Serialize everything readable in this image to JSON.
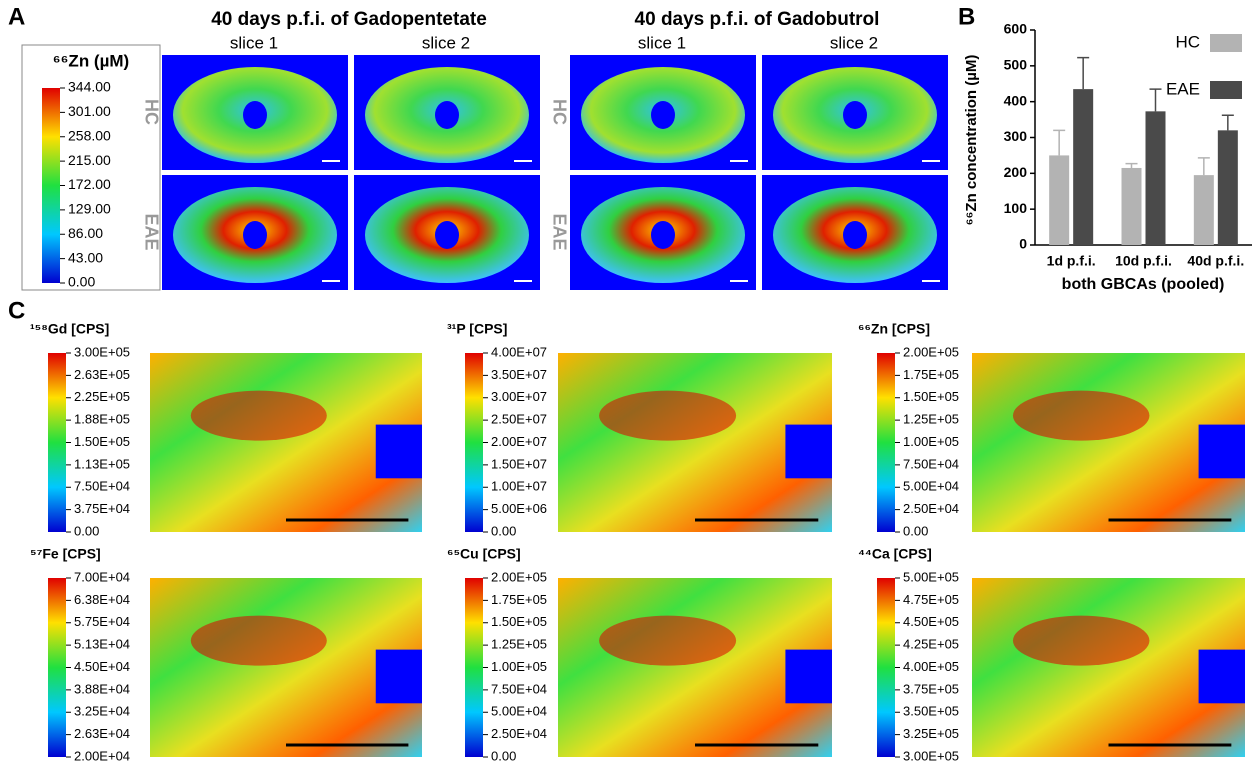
{
  "panel_labels": [
    "A",
    "B",
    "C"
  ],
  "panel_a": {
    "groups": [
      {
        "title": "40 days p.f.i. of Gadopentetate",
        "columns": [
          "slice 1",
          "slice 2"
        ],
        "rows": [
          "HC",
          "EAE"
        ]
      },
      {
        "title": "40 days p.f.i. of Gadobutrol",
        "columns": [
          "slice 1",
          "slice 2"
        ],
        "rows": [
          "HC",
          "EAE"
        ]
      }
    ],
    "colorbar": {
      "title": "⁶⁶Zn (µM)",
      "lim": [
        0,
        344
      ],
      "ticks": [
        {
          "value": 344,
          "label": "344.00"
        },
        {
          "value": 301,
          "label": "301.00"
        },
        {
          "value": 258,
          "label": "258.00"
        },
        {
          "value": 215,
          "label": "215.00"
        },
        {
          "value": 172,
          "label": "172.00"
        },
        {
          "value": 129,
          "label": "129.00"
        },
        {
          "value": 86,
          "label": "86.00"
        },
        {
          "value": 43,
          "label": "43.00"
        },
        {
          "value": 0,
          "label": "0.00"
        }
      ]
    }
  },
  "chart_data": {
    "type": "bar",
    "categories": [
      "1d p.f.i.",
      "10d p.f.i.",
      "40d p.f.i."
    ],
    "series": [
      {
        "name": "HC",
        "color": "#b3b3b3",
        "values": [
          250,
          215,
          195
        ],
        "errors": [
          70,
          12,
          48
        ]
      },
      {
        "name": "EAE",
        "color": "#4a4a4a",
        "values": [
          435,
          373,
          320
        ],
        "errors": [
          88,
          62,
          42
        ]
      }
    ],
    "xlabel": "both GBCAs (pooled)",
    "ylabel": "⁶⁶Zn concentration (µM)",
    "ylim": [
      0,
      600
    ],
    "yticks": [
      0,
      100,
      200,
      300,
      400,
      500,
      600
    ],
    "legend": "top-right"
  },
  "panel_c": {
    "colorbars": [
      {
        "title": "¹⁵⁸Gd [CPS]",
        "lim": [
          0,
          300000
        ],
        "ticks": [
          {
            "value": 300000,
            "label": "3.00E+05"
          },
          {
            "value": 262500,
            "label": "2.63E+05"
          },
          {
            "value": 225000,
            "label": "2.25E+05"
          },
          {
            "value": 187500,
            "label": "1.88E+05"
          },
          {
            "value": 150000,
            "label": "1.50E+05"
          },
          {
            "value": 112500,
            "label": "1.13E+05"
          },
          {
            "value": 75000,
            "label": "7.50E+04"
          },
          {
            "value": 37500,
            "label": "3.75E+04"
          },
          {
            "value": 0,
            "label": "0.00"
          }
        ]
      },
      {
        "title": "³¹P [CPS]",
        "lim": [
          0,
          40000000
        ],
        "ticks": [
          {
            "value": 40000000,
            "label": "4.00E+07"
          },
          {
            "value": 35000000,
            "label": "3.50E+07"
          },
          {
            "value": 30000000,
            "label": "3.00E+07"
          },
          {
            "value": 25000000,
            "label": "2.50E+07"
          },
          {
            "value": 20000000,
            "label": "2.00E+07"
          },
          {
            "value": 15000000,
            "label": "1.50E+07"
          },
          {
            "value": 10000000,
            "label": "1.00E+07"
          },
          {
            "value": 5000000,
            "label": "5.00E+06"
          },
          {
            "value": 0,
            "label": "0.00"
          }
        ]
      },
      {
        "title": "⁶⁶Zn [CPS]",
        "lim": [
          0,
          200000
        ],
        "ticks": [
          {
            "value": 200000,
            "label": "2.00E+05"
          },
          {
            "value": 175000,
            "label": "1.75E+05"
          },
          {
            "value": 150000,
            "label": "1.50E+05"
          },
          {
            "value": 125000,
            "label": "1.25E+05"
          },
          {
            "value": 100000,
            "label": "1.00E+05"
          },
          {
            "value": 75000,
            "label": "7.50E+04"
          },
          {
            "value": 50000,
            "label": "5.00E+04"
          },
          {
            "value": 25000,
            "label": "2.50E+04"
          },
          {
            "value": 0,
            "label": "0.00"
          }
        ]
      },
      {
        "title": "⁵⁷Fe [CPS]",
        "lim": [
          20000,
          70000
        ],
        "ticks": [
          {
            "value": 70000,
            "label": "7.00E+04"
          },
          {
            "value": 63750,
            "label": "6.38E+04"
          },
          {
            "value": 57500,
            "label": "5.75E+04"
          },
          {
            "value": 51250,
            "label": "5.13E+04"
          },
          {
            "value": 45000,
            "label": "4.50E+04"
          },
          {
            "value": 38750,
            "label": "3.88E+04"
          },
          {
            "value": 32500,
            "label": "3.25E+04"
          },
          {
            "value": 26250,
            "label": "2.63E+04"
          },
          {
            "value": 20000,
            "label": "2.00E+04"
          }
        ]
      },
      {
        "title": "⁶⁵Cu [CPS]",
        "lim": [
          0,
          200000
        ],
        "ticks": [
          {
            "value": 200000,
            "label": "2.00E+05"
          },
          {
            "value": 175000,
            "label": "1.75E+05"
          },
          {
            "value": 150000,
            "label": "1.50E+05"
          },
          {
            "value": 125000,
            "label": "1.25E+05"
          },
          {
            "value": 100000,
            "label": "1.00E+05"
          },
          {
            "value": 75000,
            "label": "7.50E+04"
          },
          {
            "value": 50000,
            "label": "5.00E+04"
          },
          {
            "value": 25000,
            "label": "2.50E+04"
          },
          {
            "value": 0,
            "label": "0.00"
          }
        ]
      },
      {
        "title": "⁴⁴Ca [CPS]",
        "lim": [
          300000,
          500000
        ],
        "ticks": [
          {
            "value": 500000,
            "label": "5.00E+05"
          },
          {
            "value": 475000,
            "label": "4.75E+05"
          },
          {
            "value": 450000,
            "label": "4.50E+05"
          },
          {
            "value": 425000,
            "label": "4.25E+05"
          },
          {
            "value": 400000,
            "label": "4.00E+05"
          },
          {
            "value": 375000,
            "label": "3.75E+05"
          },
          {
            "value": 350000,
            "label": "3.50E+05"
          },
          {
            "value": 325000,
            "label": "3.25E+05"
          },
          {
            "value": 300000,
            "label": "3.00E+05"
          }
        ]
      }
    ]
  }
}
